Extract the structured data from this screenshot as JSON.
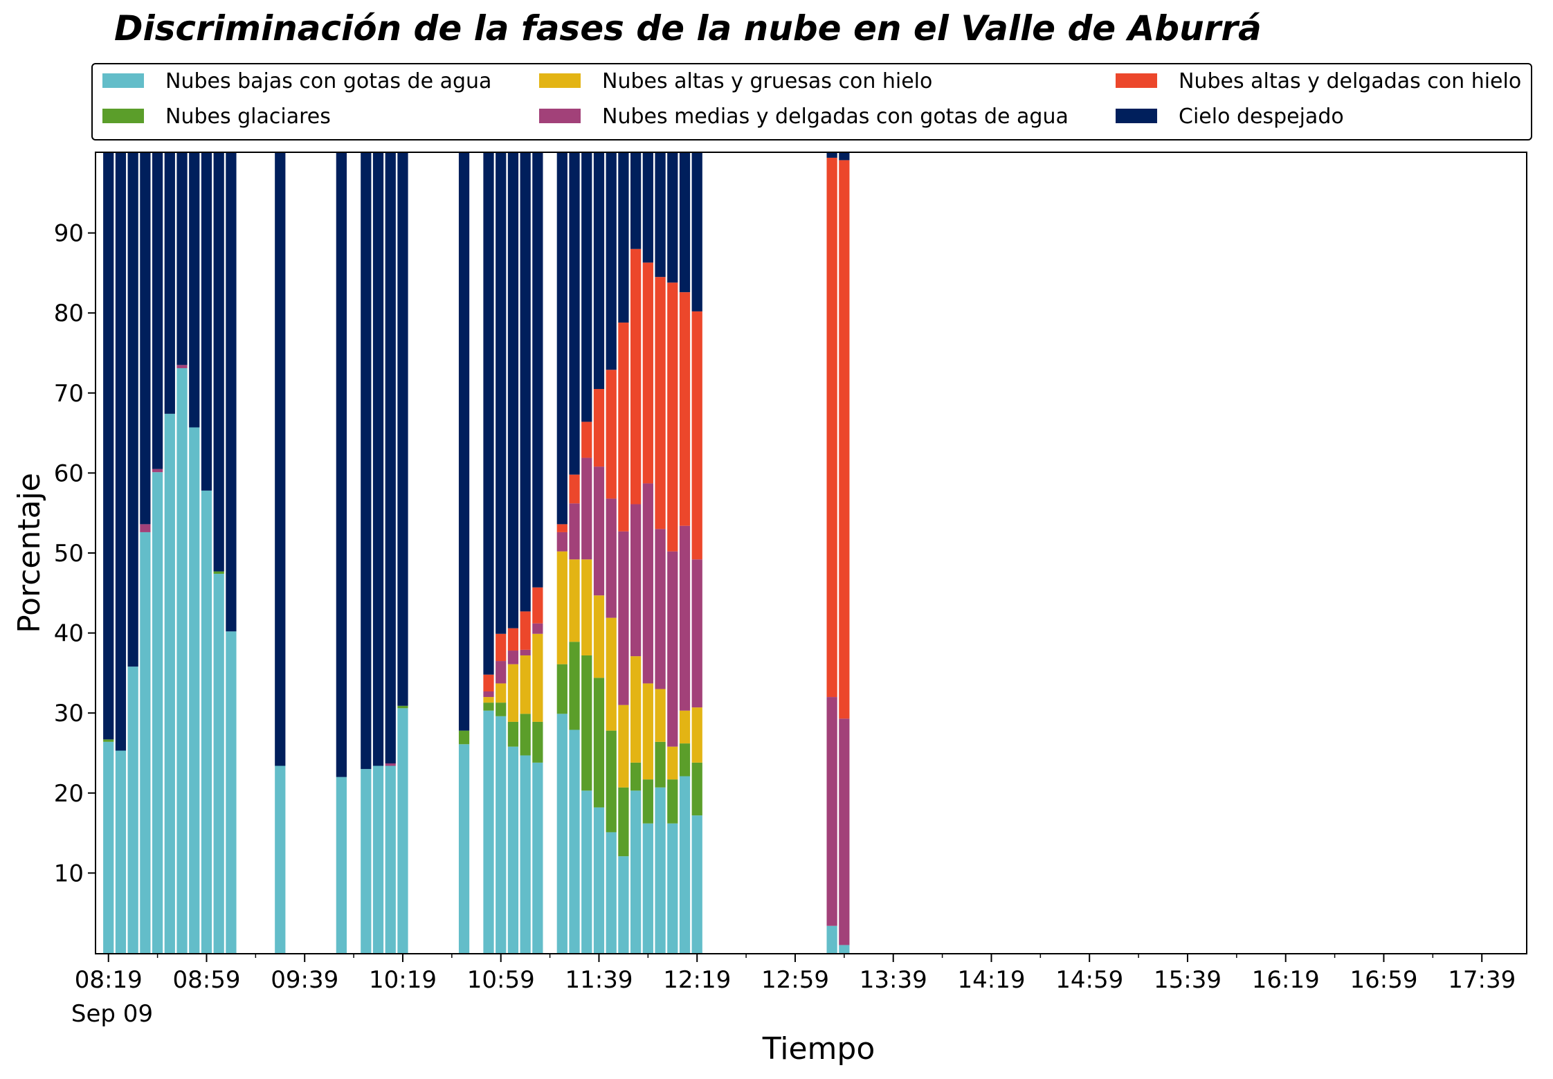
{
  "chart_data": {
    "type": "bar",
    "stacked": true,
    "title": "Discriminación de la fases de la nube en el Valle de Aburrá",
    "xlabel": "Tiempo",
    "ylabel": "Porcentaje",
    "ylim": [
      0,
      100
    ],
    "y_ticks": [
      10,
      20,
      30,
      40,
      50,
      60,
      70,
      80,
      90
    ],
    "x_range": [
      "08:14",
      "17:57"
    ],
    "x_tick_labels": [
      "08:19",
      "08:59",
      "09:39",
      "10:19",
      "10:59",
      "11:39",
      "12:19",
      "12:59",
      "13:39",
      "14:19",
      "14:59",
      "15:39",
      "16:19",
      "16:59",
      "17:39"
    ],
    "x_date_label": "Sep 09",
    "legend_placement": "top, above plot, 3 columns",
    "grid": false,
    "series": [
      {
        "name": "Nubes bajas con gotas de agua",
        "color": "#63BDC9"
      },
      {
        "name": "Nubes glaciares",
        "color": "#5B9E2A"
      },
      {
        "name": "Nubes altas y gruesas con hielo",
        "color": "#E3B414"
      },
      {
        "name": "Nubes medias y delgadas con gotas de agua",
        "color": "#A24179"
      },
      {
        "name": "Nubes altas y delgadas con hielo",
        "color": "#EC472B"
      },
      {
        "name": "Cielo despejado",
        "color": "#001F5C"
      }
    ],
    "bars": [
      {
        "time": "08:19",
        "values": [
          26.4,
          0.3,
          0,
          0,
          0,
          73.3
        ]
      },
      {
        "time": "08:24",
        "values": [
          25.3,
          0,
          0,
          0,
          0,
          74.7
        ]
      },
      {
        "time": "08:29",
        "values": [
          35.8,
          0,
          0,
          0,
          0,
          64.2
        ]
      },
      {
        "time": "08:34",
        "values": [
          52.6,
          0,
          0,
          1.0,
          0,
          46.4
        ]
      },
      {
        "time": "08:39",
        "values": [
          60.1,
          0,
          0,
          0.4,
          0,
          39.5
        ]
      },
      {
        "time": "08:44",
        "values": [
          67.4,
          0,
          0,
          0,
          0,
          32.6
        ]
      },
      {
        "time": "08:49",
        "values": [
          73.1,
          0,
          0,
          0.4,
          0,
          26.5
        ]
      },
      {
        "time": "08:54",
        "values": [
          65.7,
          0,
          0,
          0,
          0,
          34.3
        ]
      },
      {
        "time": "08:59",
        "values": [
          57.8,
          0,
          0,
          0,
          0,
          42.2
        ]
      },
      {
        "time": "09:04",
        "values": [
          47.4,
          0.3,
          0,
          0,
          0,
          52.3
        ]
      },
      {
        "time": "09:09",
        "values": [
          40.2,
          0,
          0,
          0,
          0,
          59.8
        ]
      },
      {
        "time": "09:29",
        "values": [
          23.4,
          0,
          0,
          0,
          0,
          76.6
        ]
      },
      {
        "time": "09:54",
        "values": [
          22.0,
          0,
          0,
          0,
          0,
          78.0
        ]
      },
      {
        "time": "10:04",
        "values": [
          23.0,
          0,
          0,
          0,
          0,
          77.0
        ]
      },
      {
        "time": "10:09",
        "values": [
          23.4,
          0,
          0,
          0,
          0,
          76.6
        ]
      },
      {
        "time": "10:14",
        "values": [
          23.4,
          0,
          0,
          0.3,
          0,
          76.3
        ]
      },
      {
        "time": "10:19",
        "values": [
          30.6,
          0.3,
          0,
          0,
          0,
          69.1
        ]
      },
      {
        "time": "10:44",
        "values": [
          26.1,
          1.7,
          0,
          0,
          0,
          72.2
        ]
      },
      {
        "time": "10:54",
        "values": [
          30.3,
          1.0,
          0.7,
          0.7,
          2.1,
          65.2
        ]
      },
      {
        "time": "10:59",
        "values": [
          29.6,
          1.7,
          2.4,
          2.8,
          3.4,
          60.1
        ]
      },
      {
        "time": "11:04",
        "values": [
          25.8,
          3.1,
          7.2,
          1.7,
          2.8,
          59.4
        ]
      },
      {
        "time": "11:09",
        "values": [
          24.7,
          5.2,
          7.3,
          0.7,
          4.8,
          57.3
        ]
      },
      {
        "time": "11:14",
        "values": [
          23.8,
          5.1,
          11.0,
          1.3,
          4.5,
          54.3
        ]
      },
      {
        "time": "11:24",
        "values": [
          29.9,
          6.2,
          14.1,
          2.4,
          1.0,
          46.4
        ]
      },
      {
        "time": "11:29",
        "values": [
          27.9,
          11.0,
          10.3,
          7.0,
          3.6,
          40.2
        ]
      },
      {
        "time": "11:34",
        "values": [
          20.3,
          16.9,
          12.0,
          12.7,
          4.5,
          33.6
        ]
      },
      {
        "time": "11:39",
        "values": [
          18.2,
          16.2,
          10.3,
          16.1,
          9.7,
          29.5
        ]
      },
      {
        "time": "11:44",
        "values": [
          15.1,
          12.7,
          14.1,
          14.9,
          16.1,
          27.1
        ]
      },
      {
        "time": "11:49",
        "values": [
          12.1,
          8.6,
          10.3,
          21.7,
          26.1,
          21.2
        ]
      },
      {
        "time": "11:54",
        "values": [
          20.3,
          3.5,
          13.3,
          19.0,
          31.9,
          12.0
        ]
      },
      {
        "time": "11:59",
        "values": [
          16.2,
          5.5,
          12.0,
          25.0,
          27.6,
          13.7
        ]
      },
      {
        "time": "12:04",
        "values": [
          20.7,
          5.7,
          6.6,
          20.0,
          31.5,
          15.5
        ]
      },
      {
        "time": "12:09",
        "values": [
          16.2,
          5.5,
          4.1,
          24.4,
          33.6,
          16.2
        ]
      },
      {
        "time": "12:14",
        "values": [
          22.1,
          4.1,
          4.1,
          23.1,
          29.2,
          17.4
        ]
      },
      {
        "time": "12:19",
        "values": [
          17.2,
          6.6,
          6.9,
          18.5,
          31.0,
          19.8
        ]
      },
      {
        "time": "13:14",
        "values": [
          3.4,
          0,
          0,
          28.6,
          67.4,
          0.6
        ]
      },
      {
        "time": "13:19",
        "values": [
          1.0,
          0,
          0,
          28.3,
          69.8,
          0.9
        ]
      }
    ]
  }
}
